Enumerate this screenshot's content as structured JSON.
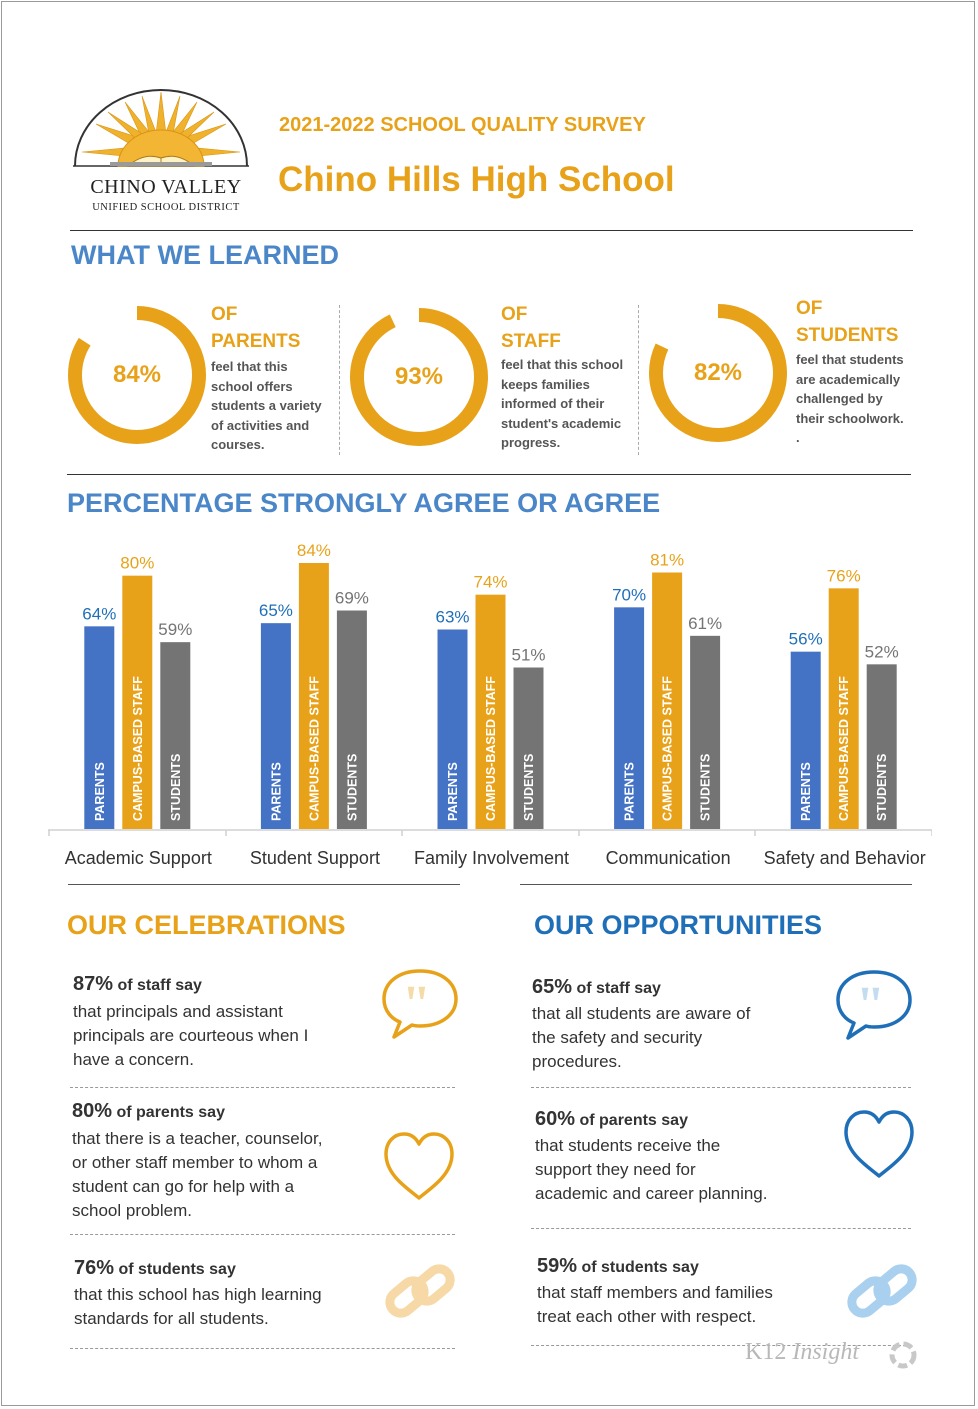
{
  "logo": {
    "name": "CHINO VALLEY",
    "subtitle": "UNIFIED SCHOOL DISTRICT"
  },
  "header": {
    "survey_title": "2021-2022 SCHOOL QUALITY SURVEY",
    "school_name": "Chino Hills High School"
  },
  "learned": {
    "heading": "WHAT WE LEARNED",
    "stats": [
      {
        "pct": "84%",
        "of": "OF",
        "group": "PARENTS",
        "desc_lines": [
          "feel that this",
          "school offers",
          "students a variety",
          "of activities and",
          "courses."
        ]
      },
      {
        "pct": "93%",
        "of": "OF",
        "group": "STAFF",
        "desc_lines": [
          "feel that this school",
          "keeps families",
          "informed of their",
          "student's academic",
          "progress."
        ]
      },
      {
        "pct": "82%",
        "of": "OF",
        "group": "STUDENTS",
        "desc_lines": [
          "feel that students",
          "are academically",
          "challenged by",
          "their schoolwork.",
          "."
        ]
      }
    ]
  },
  "chart_heading": "PERCENTAGE STRONGLY AGREE OR AGREE",
  "chart_data": {
    "type": "bar",
    "title": "PERCENTAGE STRONGLY AGREE OR AGREE",
    "categories": [
      "Academic Support",
      "Student Support",
      "Family Involvement",
      "Communication",
      "Safety and Behavior"
    ],
    "series": [
      {
        "name": "PARENTS",
        "color": "#4472c4",
        "label_color": "#1f6fb8",
        "values": [
          64,
          65,
          63,
          70,
          56
        ]
      },
      {
        "name": "CAMPUS-BASED STAFF",
        "color": "#e8a21a",
        "label_color": "#e8a21a",
        "values": [
          80,
          84,
          74,
          81,
          76
        ]
      },
      {
        "name": "STUDENTS",
        "color": "#747474",
        "label_color": "#747474",
        "values": [
          59,
          69,
          51,
          61,
          52
        ]
      }
    ],
    "ylim": [
      0,
      100
    ],
    "xlabel": "",
    "ylabel": ""
  },
  "celebrations": {
    "heading": "OUR CELEBRATIONS",
    "items": [
      {
        "pct": "87%",
        "who": "of staff say",
        "lines": [
          "that principals and assistant",
          "principals are courteous when I",
          "have a concern."
        ],
        "icon": "quote-bubble-icon"
      },
      {
        "pct": "80%",
        "who": "of parents say",
        "lines": [
          "that there is a teacher, counselor,",
          "or other staff member to whom a",
          "student can go for help with a",
          "school problem."
        ],
        "icon": "heart-icon"
      },
      {
        "pct": "76%",
        "who": "of students say",
        "lines": [
          "that this school has high learning",
          "standards for all students."
        ],
        "icon": "link-icon"
      }
    ]
  },
  "opportunities": {
    "heading": "OUR OPPORTUNITIES",
    "items": [
      {
        "pct": "65%",
        "who": "of staff say",
        "lines": [
          "that all students are aware of",
          "the safety and security",
          "procedures."
        ],
        "icon": "quote-bubble-icon"
      },
      {
        "pct": "60%",
        "who": "of parents say",
        "lines": [
          "that students receive the",
          "support they need for",
          "academic and career planning."
        ],
        "icon": "heart-icon"
      },
      {
        "pct": "59%",
        "who": "of students say",
        "lines": [
          "that staff members and families",
          "treat each other with respect."
        ],
        "icon": "link-icon"
      }
    ]
  },
  "footer": {
    "brand_a": "K12",
    "brand_b": "Insight"
  },
  "colors": {
    "orange": "#e8a21a",
    "blue": "#4472c4",
    "gray": "#747474",
    "heading_blue": "#4a86c8",
    "dark_blue": "#1f6fb8"
  }
}
